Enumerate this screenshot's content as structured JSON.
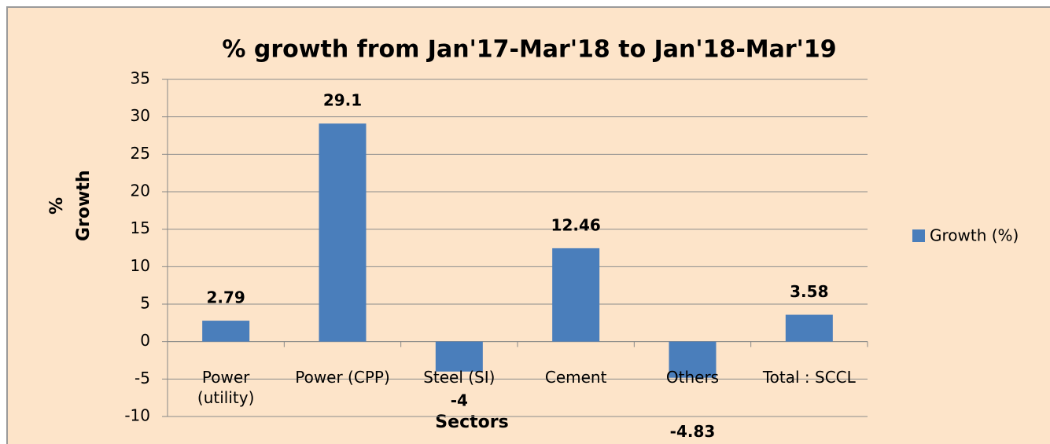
{
  "chart_data": {
    "type": "bar",
    "title": "% growth from Jan'17-Mar'18 to Jan'18-Mar'19",
    "x_label": "Sectors",
    "y_label": "% Growth",
    "categories": [
      "Power (utility)",
      "Power (CPP)",
      "Steel (SI)",
      "Cement",
      "Others",
      "Total : SCCL"
    ],
    "series": [
      {
        "name": "Growth (%)",
        "color": "#4a7ebb",
        "values": [
          2.79,
          29.1,
          -4,
          12.46,
          -4.83,
          3.58
        ]
      }
    ],
    "ylim": [
      -10,
      35
    ],
    "yticks": [
      -10,
      -5,
      0,
      5,
      10,
      15,
      20,
      25,
      30,
      35
    ],
    "grid": true,
    "legend": "right"
  }
}
